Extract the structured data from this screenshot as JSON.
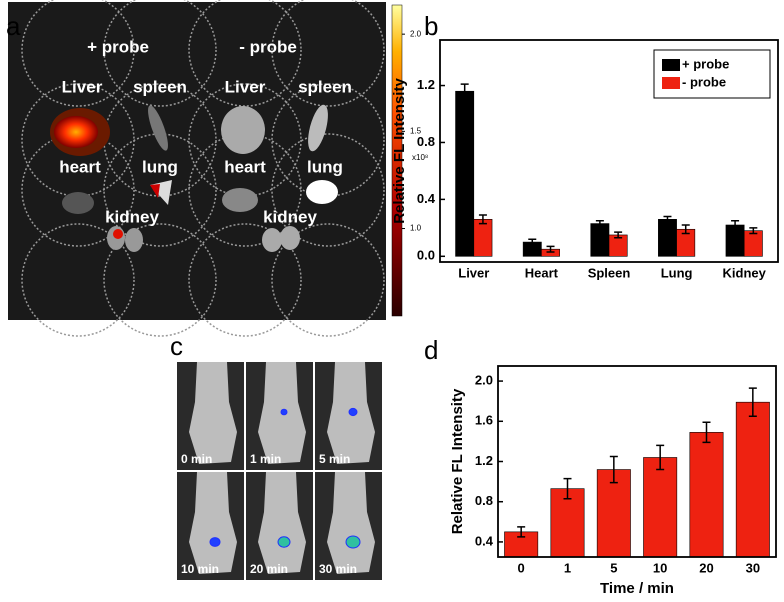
{
  "panel_labels": [
    "a",
    "b",
    "c",
    "d"
  ],
  "image_a": {
    "labels": [
      "+ probe",
      "- probe",
      "Liver",
      "spleen",
      "Liver",
      "spleen",
      "heart",
      "lung",
      "heart",
      "lung",
      "kidney",
      "kidney"
    ],
    "colorbar_unit": "x10⁸",
    "clim": [
      0.55,
      2.15
    ],
    "colorbar_ticks": [
      {
        "value": 2,
        "label": "2.0"
      },
      1.5,
      {
        "value": 1,
        "label": "1.0"
      }
    ]
  },
  "image_c": {
    "labels": [
      "0 min",
      "1 min",
      "5 min",
      "10 min",
      "20 min",
      "30 min"
    ]
  },
  "chart_data": [
    {
      "type": "bar",
      "ylabel": "Relative FL Intensity",
      "categories": [
        "Liver",
        "Heart",
        "Spleen",
        "Lung",
        "Kidney"
      ],
      "series": [
        {
          "name": "+ probe",
          "color": "#000000",
          "values": [
            1.16,
            0.1,
            0.23,
            0.26,
            0.22
          ],
          "errors": [
            0.05,
            0.02,
            0.02,
            0.02,
            0.03
          ]
        },
        {
          "name": "-  probe",
          "color": "#ee2211",
          "values": [
            0.26,
            0.05,
            0.15,
            0.19,
            0.18
          ],
          "errors": [
            0.03,
            0.02,
            0.02,
            0.03,
            0.02
          ]
        }
      ],
      "ylim": [
        -0.04,
        1.52
      ],
      "yticks": [
        {
          "value": 0,
          "label": "0.0"
        },
        0.4,
        0.8,
        1.2
      ],
      "legend": "upper right"
    },
    {
      "type": "bar",
      "ylabel": "Relative FL Intensity",
      "xlabel": "Time / min",
      "categories": [
        "0",
        "1",
        "5",
        "10",
        "20",
        "30"
      ],
      "values": [
        0.5,
        0.93,
        1.12,
        1.24,
        1.49,
        1.79
      ],
      "errors": [
        0.05,
        0.1,
        0.13,
        0.12,
        0.1,
        0.14
      ],
      "color": "#ee2211",
      "ylim": [
        0.25,
        2.15
      ],
      "yticks": [
        0.4,
        0.8,
        1.2,
        1.6,
        {
          "value": 2,
          "label": "2.0"
        }
      ]
    }
  ]
}
